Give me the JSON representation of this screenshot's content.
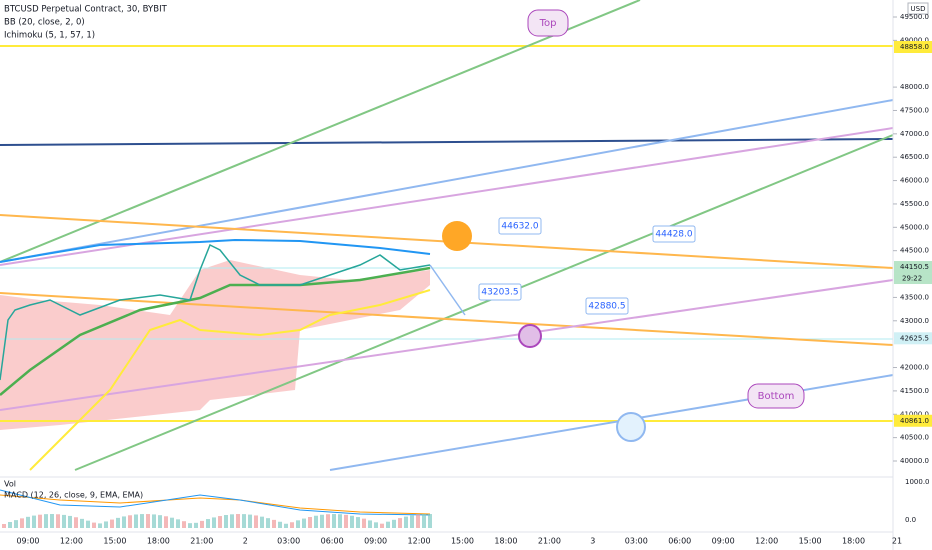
{
  "header": {
    "symbol": "BTCUSD Perpetual Contract, 30, BYBIT",
    "bb": "BB (20, close, 2, 0)",
    "ichimoku": "Ichimoku (5, 1, 57, 1)"
  },
  "currency": "USD",
  "price_axis": {
    "ylim": [
      40000,
      49500
    ],
    "ticks": [
      {
        "value": 49500,
        "label": "49500.0"
      },
      {
        "value": 49000,
        "label": "49000.0"
      },
      {
        "value": 48000,
        "label": "48000.0"
      },
      {
        "value": 47500,
        "label": "47500.0"
      },
      {
        "value": 47000,
        "label": "47000.0"
      },
      {
        "value": 46500,
        "label": "46500.0"
      },
      {
        "value": 46000,
        "label": "46000.0"
      },
      {
        "value": 45500,
        "label": "45500.0"
      },
      {
        "value": 45000,
        "label": "45000.0"
      },
      {
        "value": 44500,
        "label": "44500.0"
      },
      {
        "value": 43500,
        "label": "43500.0"
      },
      {
        "value": 43000,
        "label": "43000.0"
      },
      {
        "value": 42000,
        "label": "42000.0"
      },
      {
        "value": 41500,
        "label": "41500.0"
      },
      {
        "value": 41000,
        "label": "41000.0"
      },
      {
        "value": 40500,
        "label": "40500.0"
      },
      {
        "value": 40000,
        "label": "40000.0"
      }
    ],
    "markers": [
      {
        "value": 48858,
        "label": "48858.0",
        "color": "#ffeb3b"
      },
      {
        "value": 44150.5,
        "label": "44150.5",
        "color": "#b7e4c7"
      },
      {
        "value": 42625.5,
        "label": "42625.5",
        "color": "#d0f0f5"
      },
      {
        "value": 40861,
        "label": "40861.0",
        "color": "#ffeb3b"
      }
    ],
    "countdown": "29:22"
  },
  "macd": {
    "title": "MACD (12, 26, close, 9, EMA, EMA)",
    "ticks": [
      "1000.0",
      "0.0"
    ]
  },
  "vol_label": "Vol",
  "time_axis": [
    "09:00",
    "12:00",
    "15:00",
    "18:00",
    "21:00",
    "2",
    "03:00",
    "06:00",
    "09:00",
    "12:00",
    "15:00",
    "18:00",
    "21:00",
    "3",
    "03:00",
    "06:00",
    "09:00",
    "12:00",
    "15:00",
    "18:00",
    "21"
  ],
  "annotations": {
    "top": "Top",
    "bottom": "Bottom",
    "callouts": [
      "44632.0",
      "44428.0",
      "43203.5",
      "42880.5"
    ]
  }
}
